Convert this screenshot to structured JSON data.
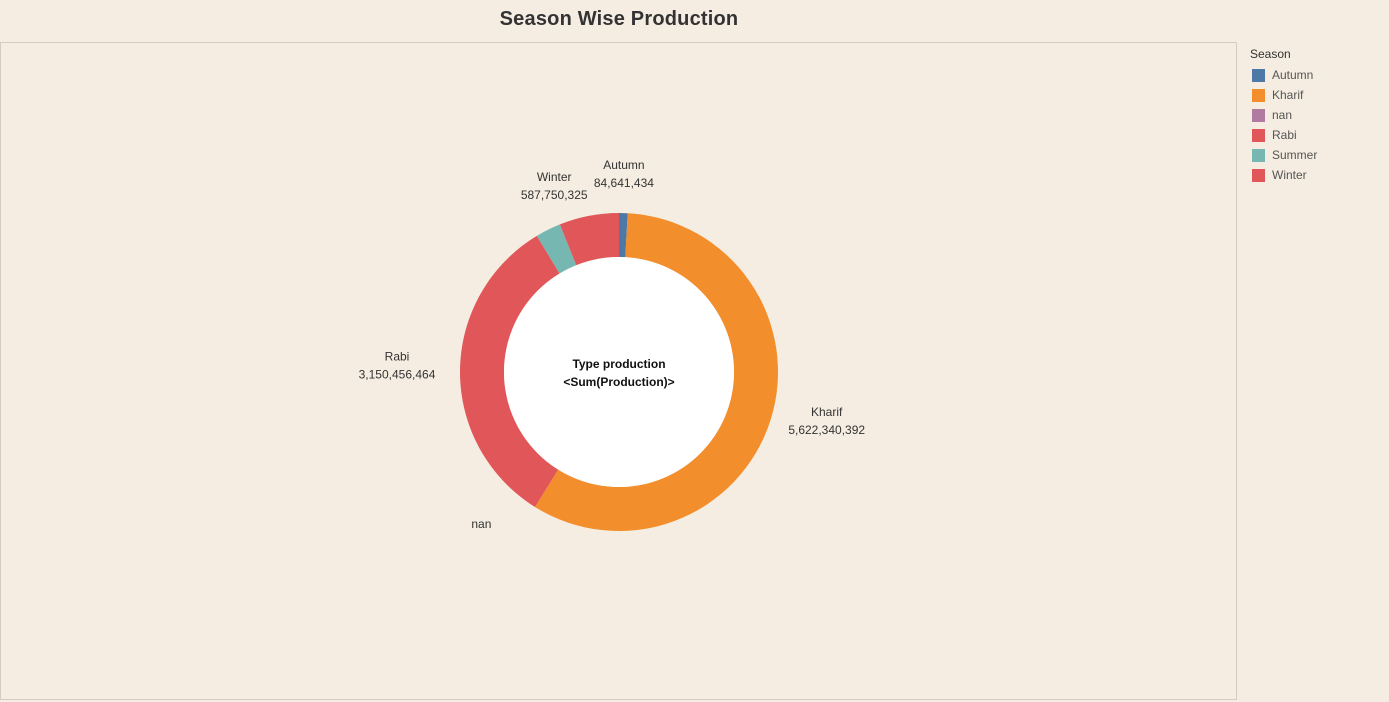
{
  "chart_data": {
    "type": "pie",
    "title": "Season Wise Production",
    "center_text": [
      "Type production",
      "<Sum(Production)>"
    ],
    "legend_title": "Season",
    "legend": [
      {
        "name": "Autumn",
        "color": "#4e79a7"
      },
      {
        "name": "Kharif",
        "color": "#f28e2b"
      },
      {
        "name": "nan",
        "color": "#b07aa1"
      },
      {
        "name": "Rabi",
        "color": "#e15759"
      },
      {
        "name": "Summer",
        "color": "#76b7b2"
      },
      {
        "name": "Winter",
        "color": "#e15759"
      }
    ],
    "slices": [
      {
        "name": "Autumn",
        "value": 84641434,
        "label": "84,641,434",
        "color": "#4e79a7"
      },
      {
        "name": "Kharif",
        "value": 5622340392,
        "label": "5,622,340,392",
        "color": "#f28e2b"
      },
      {
        "name": "nan",
        "value": 0,
        "label": "",
        "color": "#b07aa1"
      },
      {
        "name": "Rabi",
        "value": 3150456464,
        "label": "3,150,456,464",
        "color": "#e15759"
      },
      {
        "name": "Summer",
        "value": 250000000,
        "label": "",
        "color": "#76b7b2"
      },
      {
        "name": "Winter",
        "value": 587750325,
        "label": "587,750,325",
        "color": "#e15759"
      }
    ],
    "legend_position": "right"
  }
}
